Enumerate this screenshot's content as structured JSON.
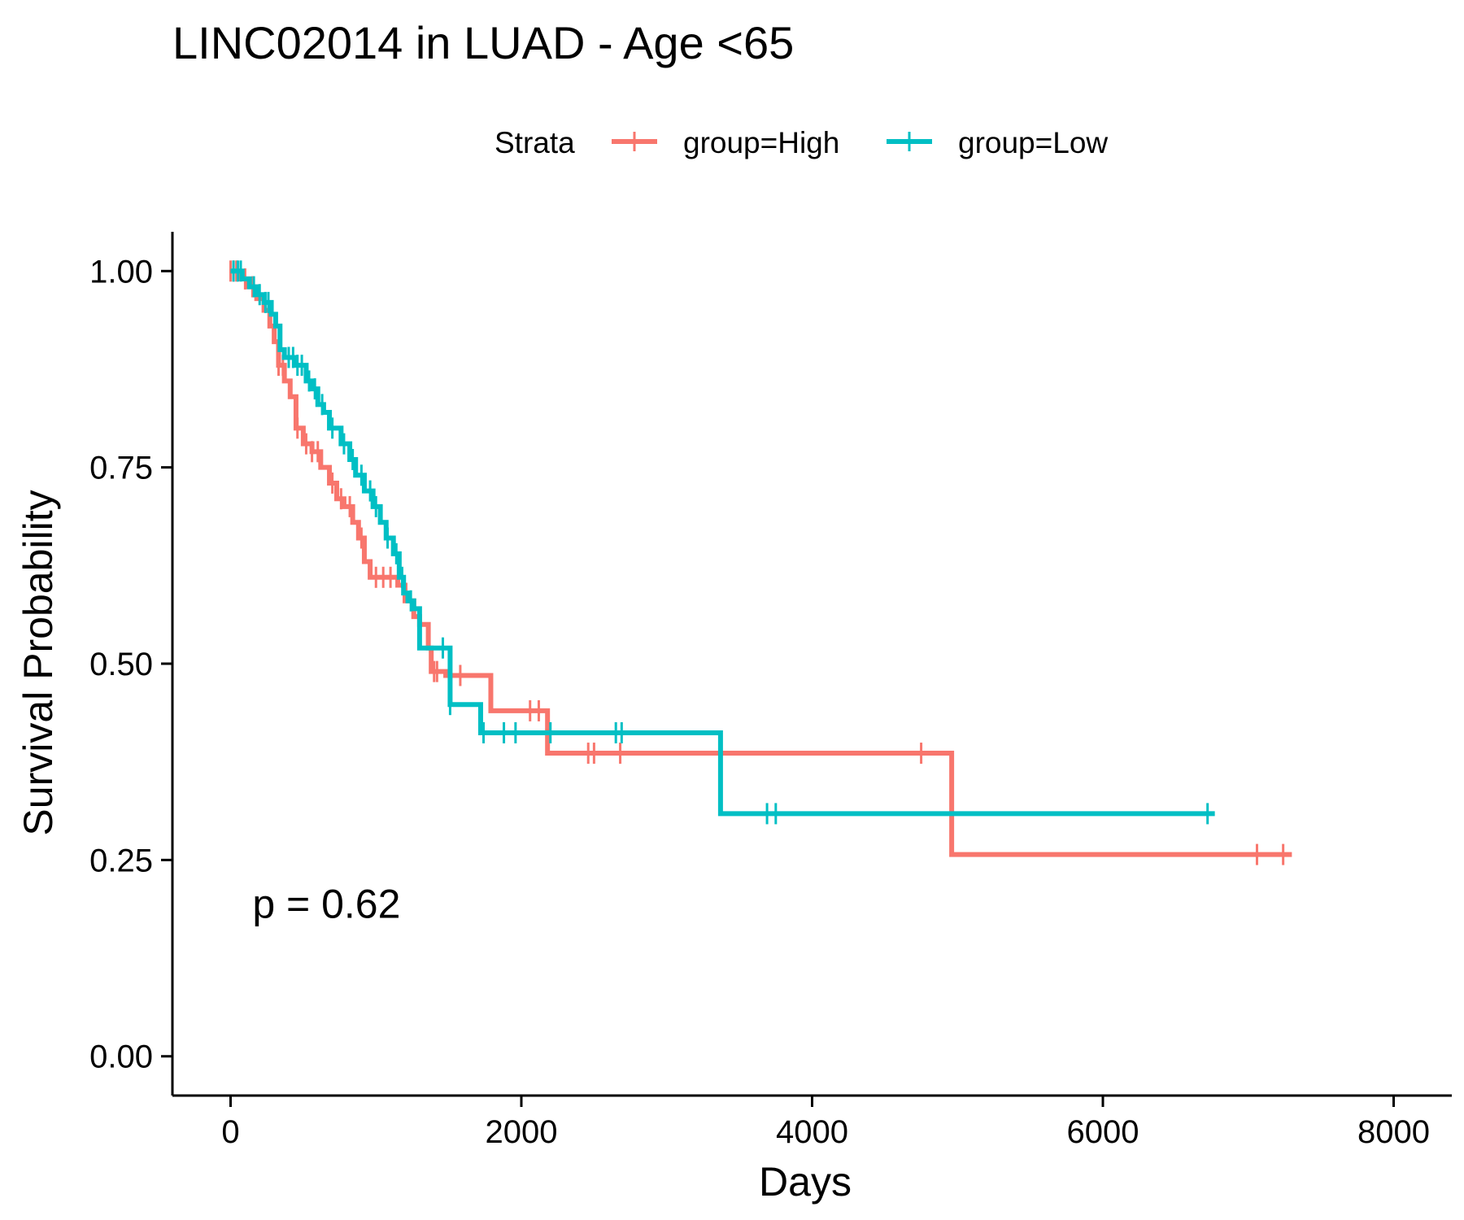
{
  "chart_data": {
    "type": "line",
    "subtype": "kaplan-meier step",
    "title": "LINC02014 in LUAD - Age <65",
    "xlabel": "Days",
    "ylabel": "Survival Probability",
    "xlim": [
      -400,
      8400
    ],
    "ylim": [
      -0.05,
      1.05
    ],
    "x_ticks": [
      0,
      2000,
      4000,
      6000,
      8000
    ],
    "x_tick_labels": [
      "0",
      "2000",
      "4000",
      "6000",
      "8000"
    ],
    "y_ticks": [
      0,
      0.25,
      0.5,
      0.75,
      1.0
    ],
    "y_tick_labels": [
      "0.00",
      "0.25",
      "0.50",
      "0.75",
      "1.00"
    ],
    "grid": false,
    "legend_title": "Strata",
    "legend_position": "top",
    "annotation": "p = 0.62",
    "annotation_pos": {
      "x": 150,
      "y": 0.195
    },
    "series": [
      {
        "name": "group=High",
        "color": "#F8766D",
        "steps": [
          [
            0,
            1.0
          ],
          [
            60,
            0.99
          ],
          [
            120,
            0.98
          ],
          [
            180,
            0.965
          ],
          [
            230,
            0.95
          ],
          [
            270,
            0.93
          ],
          [
            300,
            0.91
          ],
          [
            330,
            0.88
          ],
          [
            370,
            0.86
          ],
          [
            410,
            0.84
          ],
          [
            450,
            0.8
          ],
          [
            500,
            0.78
          ],
          [
            560,
            0.77
          ],
          [
            620,
            0.75
          ],
          [
            680,
            0.73
          ],
          [
            730,
            0.71
          ],
          [
            780,
            0.7
          ],
          [
            840,
            0.68
          ],
          [
            880,
            0.66
          ],
          [
            920,
            0.63
          ],
          [
            960,
            0.61
          ],
          [
            1150,
            0.6
          ],
          [
            1200,
            0.58
          ],
          [
            1260,
            0.56
          ],
          [
            1300,
            0.55
          ],
          [
            1360,
            0.52
          ],
          [
            1380,
            0.49
          ],
          [
            1480,
            0.485
          ],
          [
            1790,
            0.44
          ],
          [
            2180,
            0.386
          ],
          [
            4960,
            0.257
          ],
          [
            7300,
            0.257
          ]
        ],
        "censor_x": [
          0,
          20,
          40,
          100,
          150,
          330,
          360,
          460,
          520,
          560,
          600,
          700,
          760,
          820,
          900,
          1000,
          1050,
          1100,
          1400,
          1420,
          1580,
          2060,
          2120,
          2460,
          2500,
          2680,
          4750,
          7060,
          7240
        ]
      },
      {
        "name": "group=Low",
        "color": "#00BFC4",
        "steps": [
          [
            0,
            1.0
          ],
          [
            80,
            0.99
          ],
          [
            130,
            0.98
          ],
          [
            180,
            0.97
          ],
          [
            230,
            0.96
          ],
          [
            280,
            0.945
          ],
          [
            310,
            0.93
          ],
          [
            340,
            0.9
          ],
          [
            370,
            0.89
          ],
          [
            440,
            0.88
          ],
          [
            520,
            0.86
          ],
          [
            560,
            0.85
          ],
          [
            600,
            0.83
          ],
          [
            640,
            0.82
          ],
          [
            680,
            0.8
          ],
          [
            760,
            0.78
          ],
          [
            820,
            0.76
          ],
          [
            860,
            0.74
          ],
          [
            920,
            0.72
          ],
          [
            980,
            0.7
          ],
          [
            1030,
            0.68
          ],
          [
            1070,
            0.66
          ],
          [
            1120,
            0.64
          ],
          [
            1160,
            0.61
          ],
          [
            1190,
            0.59
          ],
          [
            1220,
            0.58
          ],
          [
            1260,
            0.57
          ],
          [
            1300,
            0.52
          ],
          [
            1510,
            0.448
          ],
          [
            1720,
            0.412
          ],
          [
            3370,
            0.309
          ],
          [
            6770,
            0.309
          ]
        ],
        "censor_x": [
          20,
          50,
          70,
          160,
          200,
          240,
          260,
          400,
          430,
          460,
          490,
          540,
          580,
          630,
          700,
          780,
          840,
          900,
          960,
          1000,
          1080,
          1140,
          1180,
          1240,
          1460,
          1510,
          1740,
          1880,
          1960,
          2200,
          2650,
          2690,
          3690,
          3750,
          6720
        ]
      }
    ]
  }
}
